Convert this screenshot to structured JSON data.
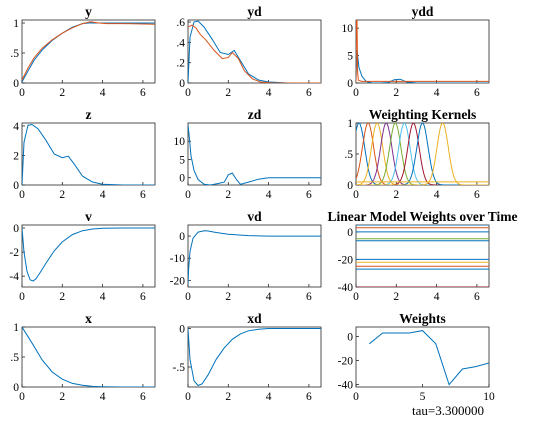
{
  "caption": "tau=3.300000",
  "colors": {
    "blue": "#0072bd",
    "orange": "#d95319",
    "yellow": "#edb120",
    "purple": "#7e2f8e",
    "green": "#77ac30",
    "cyan": "#4dbeee",
    "darkred": "#a2142f"
  },
  "chart_data": [
    {
      "type": "line",
      "title": "y",
      "xlim": [
        0,
        6.6
      ],
      "ylim": [
        0,
        1.05
      ],
      "xticks": [
        0,
        2,
        4,
        6
      ],
      "yticks": [
        0,
        0.5,
        1
      ],
      "series": [
        {
          "color": "#0072bd",
          "x": [
            0,
            0.3,
            0.6,
            1.0,
            1.5,
            2.0,
            2.5,
            3.0,
            3.3,
            3.6,
            4.0,
            5.0,
            6.6
          ],
          "y": [
            0.02,
            0.2,
            0.38,
            0.55,
            0.71,
            0.83,
            0.93,
            0.99,
            1.0,
            1.0,
            1.0,
            1.0,
            1.0
          ]
        },
        {
          "color": "#d95319",
          "x": [
            0,
            0.3,
            0.6,
            1.0,
            1.5,
            2.0,
            2.5,
            3.0,
            3.4,
            3.8,
            4.2,
            5.0,
            6.6
          ],
          "y": [
            0.05,
            0.25,
            0.42,
            0.58,
            0.72,
            0.83,
            0.92,
            0.99,
            1.02,
            1.0,
            0.99,
            0.99,
            0.98
          ]
        }
      ]
    },
    {
      "type": "line",
      "title": "yd",
      "xlim": [
        0,
        6.6
      ],
      "ylim": [
        0,
        0.62
      ],
      "xticks": [
        0,
        2,
        4,
        6
      ],
      "yticks": [
        0,
        0.2,
        0.4,
        0.6
      ],
      "series": [
        {
          "color": "#0072bd",
          "x": [
            0,
            0.1,
            0.3,
            0.5,
            0.8,
            1.2,
            1.6,
            2.0,
            2.3,
            2.6,
            3.0,
            3.5,
            4.0,
            5.0,
            6.6
          ],
          "y": [
            0.0,
            0.45,
            0.6,
            0.61,
            0.55,
            0.43,
            0.3,
            0.28,
            0.32,
            0.22,
            0.09,
            0.03,
            0.01,
            0.0,
            0.0
          ]
        },
        {
          "color": "#d95319",
          "x": [
            0,
            0.2,
            0.4,
            0.6,
            0.9,
            1.3,
            1.7,
            2.0,
            2.2,
            2.5,
            2.8,
            3.2,
            3.6,
            4.2,
            5.0,
            6.6
          ],
          "y": [
            0.55,
            0.57,
            0.54,
            0.48,
            0.42,
            0.32,
            0.24,
            0.25,
            0.3,
            0.24,
            0.12,
            0.04,
            0.01,
            0.0,
            0.0,
            0.0
          ]
        }
      ]
    },
    {
      "type": "line",
      "title": "ydd",
      "xlim": [
        0,
        6.6
      ],
      "ylim": [
        0,
        11.5
      ],
      "xticks": [
        0,
        2,
        4,
        6
      ],
      "yticks": [
        0,
        5,
        10
      ],
      "series": [
        {
          "color": "#0072bd",
          "x": [
            0,
            0.05,
            0.15,
            0.3,
            0.5,
            0.8,
            1.2,
            1.6,
            1.9,
            2.2,
            2.5,
            3.0,
            4.0,
            6.6
          ],
          "y": [
            0.5,
            6.0,
            2.8,
            1.2,
            0.3,
            0.0,
            0.0,
            0.1,
            0.6,
            0.7,
            0.2,
            0.0,
            0.0,
            0.0
          ]
        },
        {
          "color": "#d95319",
          "x": [
            0,
            0.02,
            0.05,
            0.08,
            0.12,
            0.3,
            0.6,
            1.0,
            2.0,
            3.0,
            4.0,
            6.6
          ],
          "y": [
            0.0,
            11.5,
            11.5,
            2.0,
            0.5,
            0.3,
            0.3,
            0.3,
            0.3,
            0.3,
            0.3,
            0.3
          ]
        }
      ]
    },
    {
      "type": "line",
      "title": "z",
      "xlim": [
        0,
        6.6
      ],
      "ylim": [
        0,
        4.2
      ],
      "xticks": [
        0,
        2,
        4,
        6
      ],
      "yticks": [
        0,
        2,
        4
      ],
      "series": [
        {
          "color": "#0072bd",
          "x": [
            0,
            0.1,
            0.3,
            0.5,
            0.8,
            1.2,
            1.6,
            2.0,
            2.3,
            2.6,
            3.0,
            3.5,
            4.0,
            5.0,
            6.6
          ],
          "y": [
            0.0,
            2.9,
            4.05,
            4.1,
            3.8,
            3.0,
            2.1,
            1.85,
            1.95,
            1.4,
            0.6,
            0.2,
            0.05,
            0.0,
            0.0
          ]
        }
      ]
    },
    {
      "type": "line",
      "title": "zd",
      "xlim": [
        0,
        6.6
      ],
      "ylim": [
        -2,
        15
      ],
      "xticks": [
        0,
        2,
        4,
        6
      ],
      "yticks": [
        0,
        5,
        10
      ],
      "series": [
        {
          "color": "#0072bd",
          "x": [
            0,
            0.05,
            0.15,
            0.3,
            0.5,
            0.8,
            1.1,
            1.5,
            1.8,
            2.0,
            2.2,
            2.4,
            2.6,
            3.0,
            3.5,
            4.0,
            5.0,
            6.6
          ],
          "y": [
            14.5,
            12.0,
            6.0,
            2.0,
            -0.5,
            -1.8,
            -2.0,
            -1.6,
            -1.2,
            0.8,
            1.3,
            -0.5,
            -1.8,
            -1.2,
            -0.4,
            0.0,
            0.0,
            0.0
          ]
        }
      ]
    },
    {
      "type": "line",
      "title": "Weighting Kernels",
      "xlim": [
        0,
        6.6
      ],
      "ylim": [
        0,
        1
      ],
      "xticks": [
        0,
        2,
        4,
        6
      ],
      "yticks": [
        0,
        0.5,
        1
      ],
      "kernel_centers": [
        0.15,
        0.6,
        1.05,
        1.5,
        1.95,
        2.4,
        2.85,
        3.3,
        4.3
      ],
      "kernel_colors": [
        "#0072bd",
        "#d95319",
        "#edb120",
        "#7e2f8e",
        "#77ac30",
        "#4dbeee",
        "#a2142f",
        "#0072bd",
        "#edb120"
      ]
    },
    {
      "type": "line",
      "title": "v",
      "xlim": [
        0,
        6.6
      ],
      "ylim": [
        -4.9,
        0.25
      ],
      "xticks": [
        0,
        2,
        4,
        6
      ],
      "yticks": [
        -4,
        -2,
        0
      ],
      "series": [
        {
          "color": "#0072bd",
          "x": [
            0,
            0.1,
            0.25,
            0.4,
            0.55,
            0.7,
            0.9,
            1.2,
            1.6,
            2.0,
            2.5,
            3.0,
            3.5,
            4.0,
            5.0,
            6.6
          ],
          "y": [
            0.0,
            -2.0,
            -3.6,
            -4.3,
            -4.4,
            -4.2,
            -3.7,
            -2.9,
            -1.9,
            -1.15,
            -0.55,
            -0.22,
            -0.08,
            -0.02,
            0.0,
            0.0
          ]
        }
      ]
    },
    {
      "type": "line",
      "title": "vd",
      "xlim": [
        0,
        6.6
      ],
      "ylim": [
        -23,
        5
      ],
      "xticks": [
        0,
        2,
        4,
        6
      ],
      "yticks": [
        -20,
        -10,
        0
      ],
      "series": [
        {
          "color": "#0072bd",
          "x": [
            0,
            0.03,
            0.1,
            0.25,
            0.5,
            0.8,
            1.0,
            1.4,
            2.0,
            3.0,
            4.0,
            5.0,
            6.6
          ],
          "y": [
            -22.0,
            -15.0,
            -7.0,
            -1.0,
            1.8,
            2.4,
            2.3,
            1.6,
            0.8,
            0.2,
            0.0,
            0.0,
            0.0
          ]
        }
      ]
    },
    {
      "type": "line",
      "title": "Linear Model Weights over Time",
      "xlim": [
        0,
        6.6
      ],
      "ylim": [
        -40,
        5
      ],
      "xticks": [
        0,
        2,
        4,
        6
      ],
      "yticks": [
        -40,
        -20,
        0
      ],
      "levels": [
        5,
        3,
        0,
        -5,
        -6.5,
        -20,
        -22,
        -25,
        -27,
        -40
      ],
      "level_colors": [
        "#0072bd",
        "#d95319",
        "#0072bd",
        "#77ac30",
        "#0072bd",
        "#0072bd",
        "#edb120",
        "#d95319",
        "#0072bd",
        "#a2142f"
      ]
    },
    {
      "type": "line",
      "title": "x",
      "xlim": [
        0,
        6.6
      ],
      "ylim": [
        0,
        1
      ],
      "xticks": [
        0,
        2,
        4,
        6
      ],
      "yticks": [
        0,
        0.5,
        1
      ],
      "series": [
        {
          "color": "#0072bd",
          "x": [
            0,
            0.5,
            1.0,
            1.5,
            2.0,
            2.5,
            3.0,
            3.5,
            4.0,
            5.0,
            6.6
          ],
          "y": [
            1.0,
            0.73,
            0.45,
            0.25,
            0.13,
            0.06,
            0.03,
            0.01,
            0.005,
            0.0,
            0.0
          ]
        }
      ]
    },
    {
      "type": "line",
      "title": "xd",
      "xlim": [
        0,
        6.6
      ],
      "ylim": [
        -0.76,
        0.02
      ],
      "xticks": [
        0,
        2,
        4,
        6
      ],
      "yticks": [
        -0.5,
        0
      ],
      "series": [
        {
          "color": "#0072bd",
          "x": [
            0,
            0.1,
            0.3,
            0.5,
            0.7,
            1.0,
            1.4,
            1.8,
            2.2,
            2.6,
            3.0,
            3.5,
            4.0,
            5.0,
            6.6
          ],
          "y": [
            0.0,
            -0.4,
            -0.68,
            -0.74,
            -0.72,
            -0.6,
            -0.4,
            -0.25,
            -0.14,
            -0.07,
            -0.03,
            -0.01,
            0.0,
            0.0,
            0.0
          ]
        }
      ]
    },
    {
      "type": "line",
      "title": "Weights",
      "xlim": [
        0,
        10
      ],
      "ylim": [
        -42,
        8
      ],
      "xticks": [
        0,
        5,
        10
      ],
      "yticks": [
        -40,
        -20,
        0
      ],
      "series": [
        {
          "color": "#0072bd",
          "x": [
            1,
            2,
            3,
            4,
            5,
            6,
            7,
            8,
            9,
            10
          ],
          "y": [
            -6,
            3,
            3,
            3,
            5,
            -6,
            -40,
            -27,
            -25,
            -22
          ]
        }
      ]
    }
  ]
}
